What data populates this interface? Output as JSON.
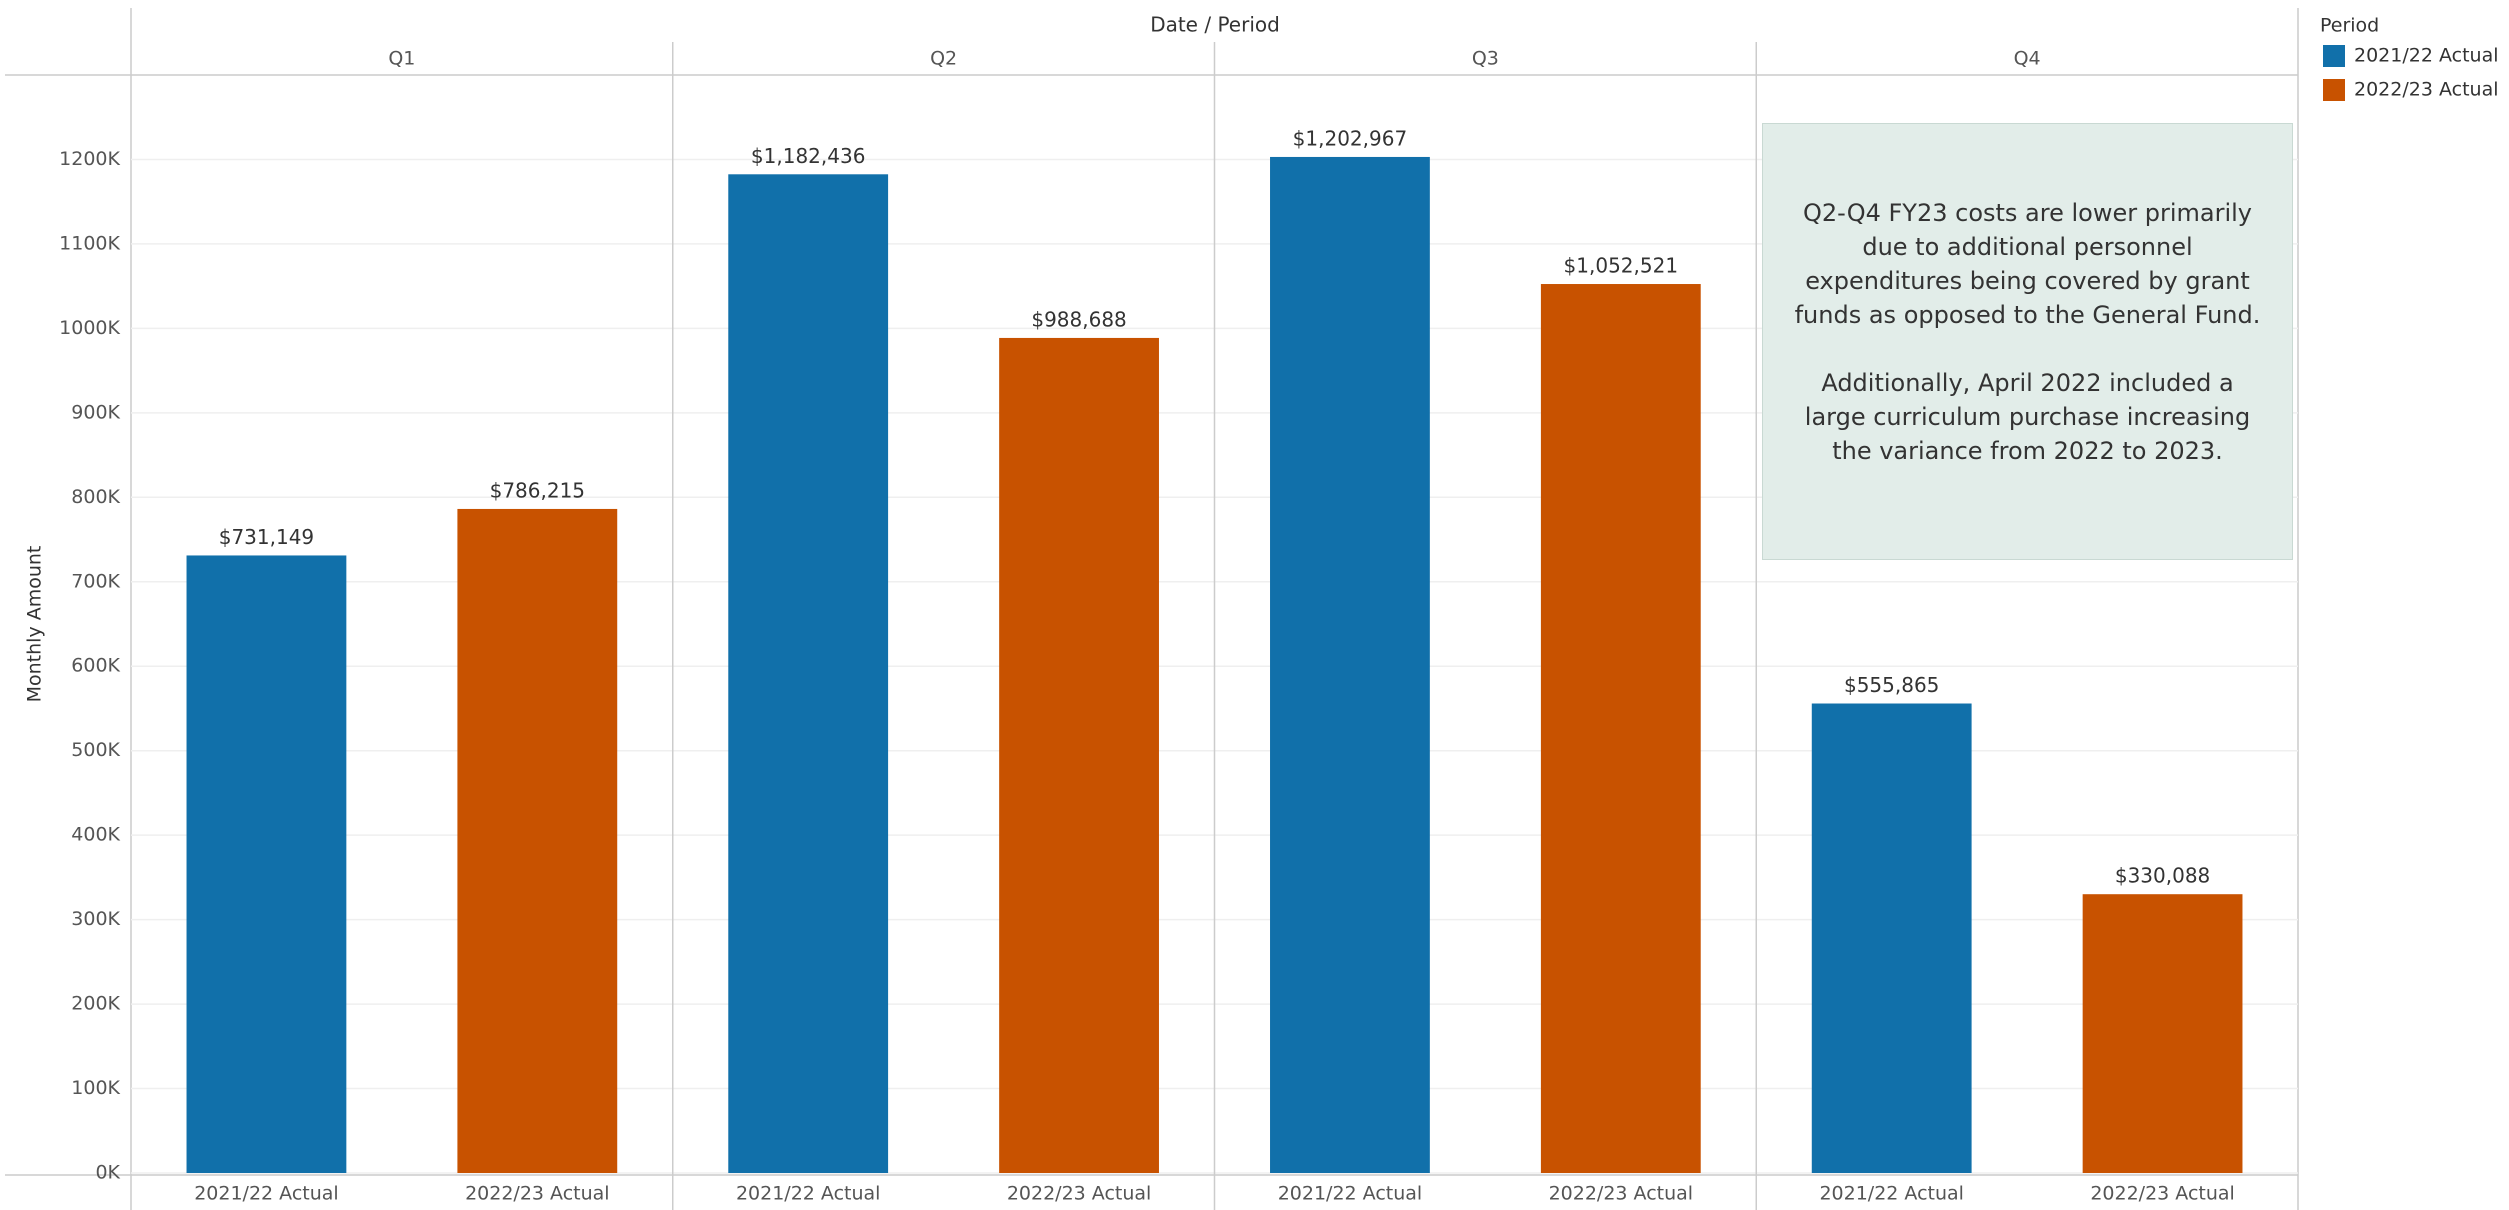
{
  "chart_data": {
    "type": "bar",
    "header": "Date / Period",
    "y_label": "Monthly Amount",
    "legend_title": "Period",
    "categories": [
      "Q1",
      "Q2",
      "Q3",
      "Q4"
    ],
    "series": [
      {
        "name": "2021/22 Actual",
        "color": "#1170aa",
        "values": [
          731149,
          1182436,
          1202967,
          555865
        ],
        "value_labels": [
          "$731,149",
          "$1,182,436",
          "$1,202,967",
          "$555,865"
        ]
      },
      {
        "name": "2022/23 Actual",
        "color": "#c85200",
        "values": [
          786215,
          988688,
          1052521,
          330088
        ],
        "value_labels": [
          "$786,215",
          "$988,688",
          "$1,052,521",
          "$330,088"
        ]
      }
    ],
    "ylim": [
      0,
      1300000
    ],
    "yticks": [
      {
        "value": 0,
        "label": "0K"
      },
      {
        "value": 100000,
        "label": "100K"
      },
      {
        "value": 200000,
        "label": "200K"
      },
      {
        "value": 300000,
        "label": "300K"
      },
      {
        "value": 400000,
        "label": "400K"
      },
      {
        "value": 500000,
        "label": "500K"
      },
      {
        "value": 600000,
        "label": "600K"
      },
      {
        "value": 700000,
        "label": "700K"
      },
      {
        "value": 800000,
        "label": "800K"
      },
      {
        "value": 900000,
        "label": "900K"
      },
      {
        "value": 1000000,
        "label": "1000K"
      },
      {
        "value": 1100000,
        "label": "1100K"
      },
      {
        "value": 1200000,
        "label": "1200K"
      }
    ],
    "grid": true,
    "annotation": [
      "Q2-Q4 FY23  costs are lower primarily due to additional personnel expenditures being covered by grant funds as opposed to the General Fund.",
      "Additionally, April 2022 included a large curriculum purchase increasing the variance from 2022 to 2023."
    ]
  }
}
